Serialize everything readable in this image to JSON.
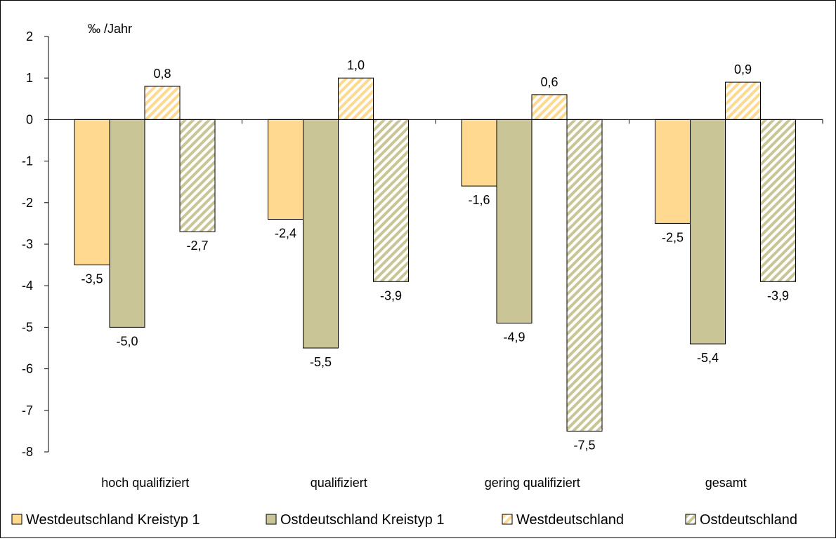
{
  "chart_data": {
    "type": "bar",
    "unit_label": "‰ /Jahr",
    "categories": [
      "hoch qualifiziert",
      "qualifiziert",
      "gering qualifiziert",
      "gesamt"
    ],
    "ylim": [
      -8,
      2
    ],
    "yticks": [
      2,
      1,
      0,
      -1,
      -2,
      -3,
      -4,
      -5,
      -6,
      -7,
      -8
    ],
    "grid": false,
    "legend_position": "bottom",
    "series": [
      {
        "name": "Westdeutschland Kreistyp 1",
        "values": [
          -3.5,
          -2.4,
          -1.6,
          -2.5
        ],
        "labels": [
          "-3,5",
          "-2,4",
          "-1,6",
          "-2,5"
        ],
        "color": "#FFD98F",
        "pattern": "solid"
      },
      {
        "name": "Ostdeutschland Kreistyp 1",
        "values": [
          -5.0,
          -5.5,
          -4.9,
          -5.4
        ],
        "labels": [
          "-5,0",
          "-5,5",
          "-4,9",
          "-5,4"
        ],
        "color": "#C9C596",
        "pattern": "solid"
      },
      {
        "name": "Westdeutschland",
        "values": [
          0.8,
          1.0,
          0.6,
          0.9
        ],
        "labels": [
          "0,8",
          "1,0",
          "0,6",
          "0,9"
        ],
        "color": "#FFD98F",
        "pattern": "hatched"
      },
      {
        "name": "Ostdeutschland",
        "values": [
          -2.7,
          -3.9,
          -7.5,
          -3.9
        ],
        "labels": [
          "-2,7",
          "-3,9",
          "-7,5",
          "-3,9"
        ],
        "color": "#C9C596",
        "pattern": "hatched"
      }
    ]
  }
}
